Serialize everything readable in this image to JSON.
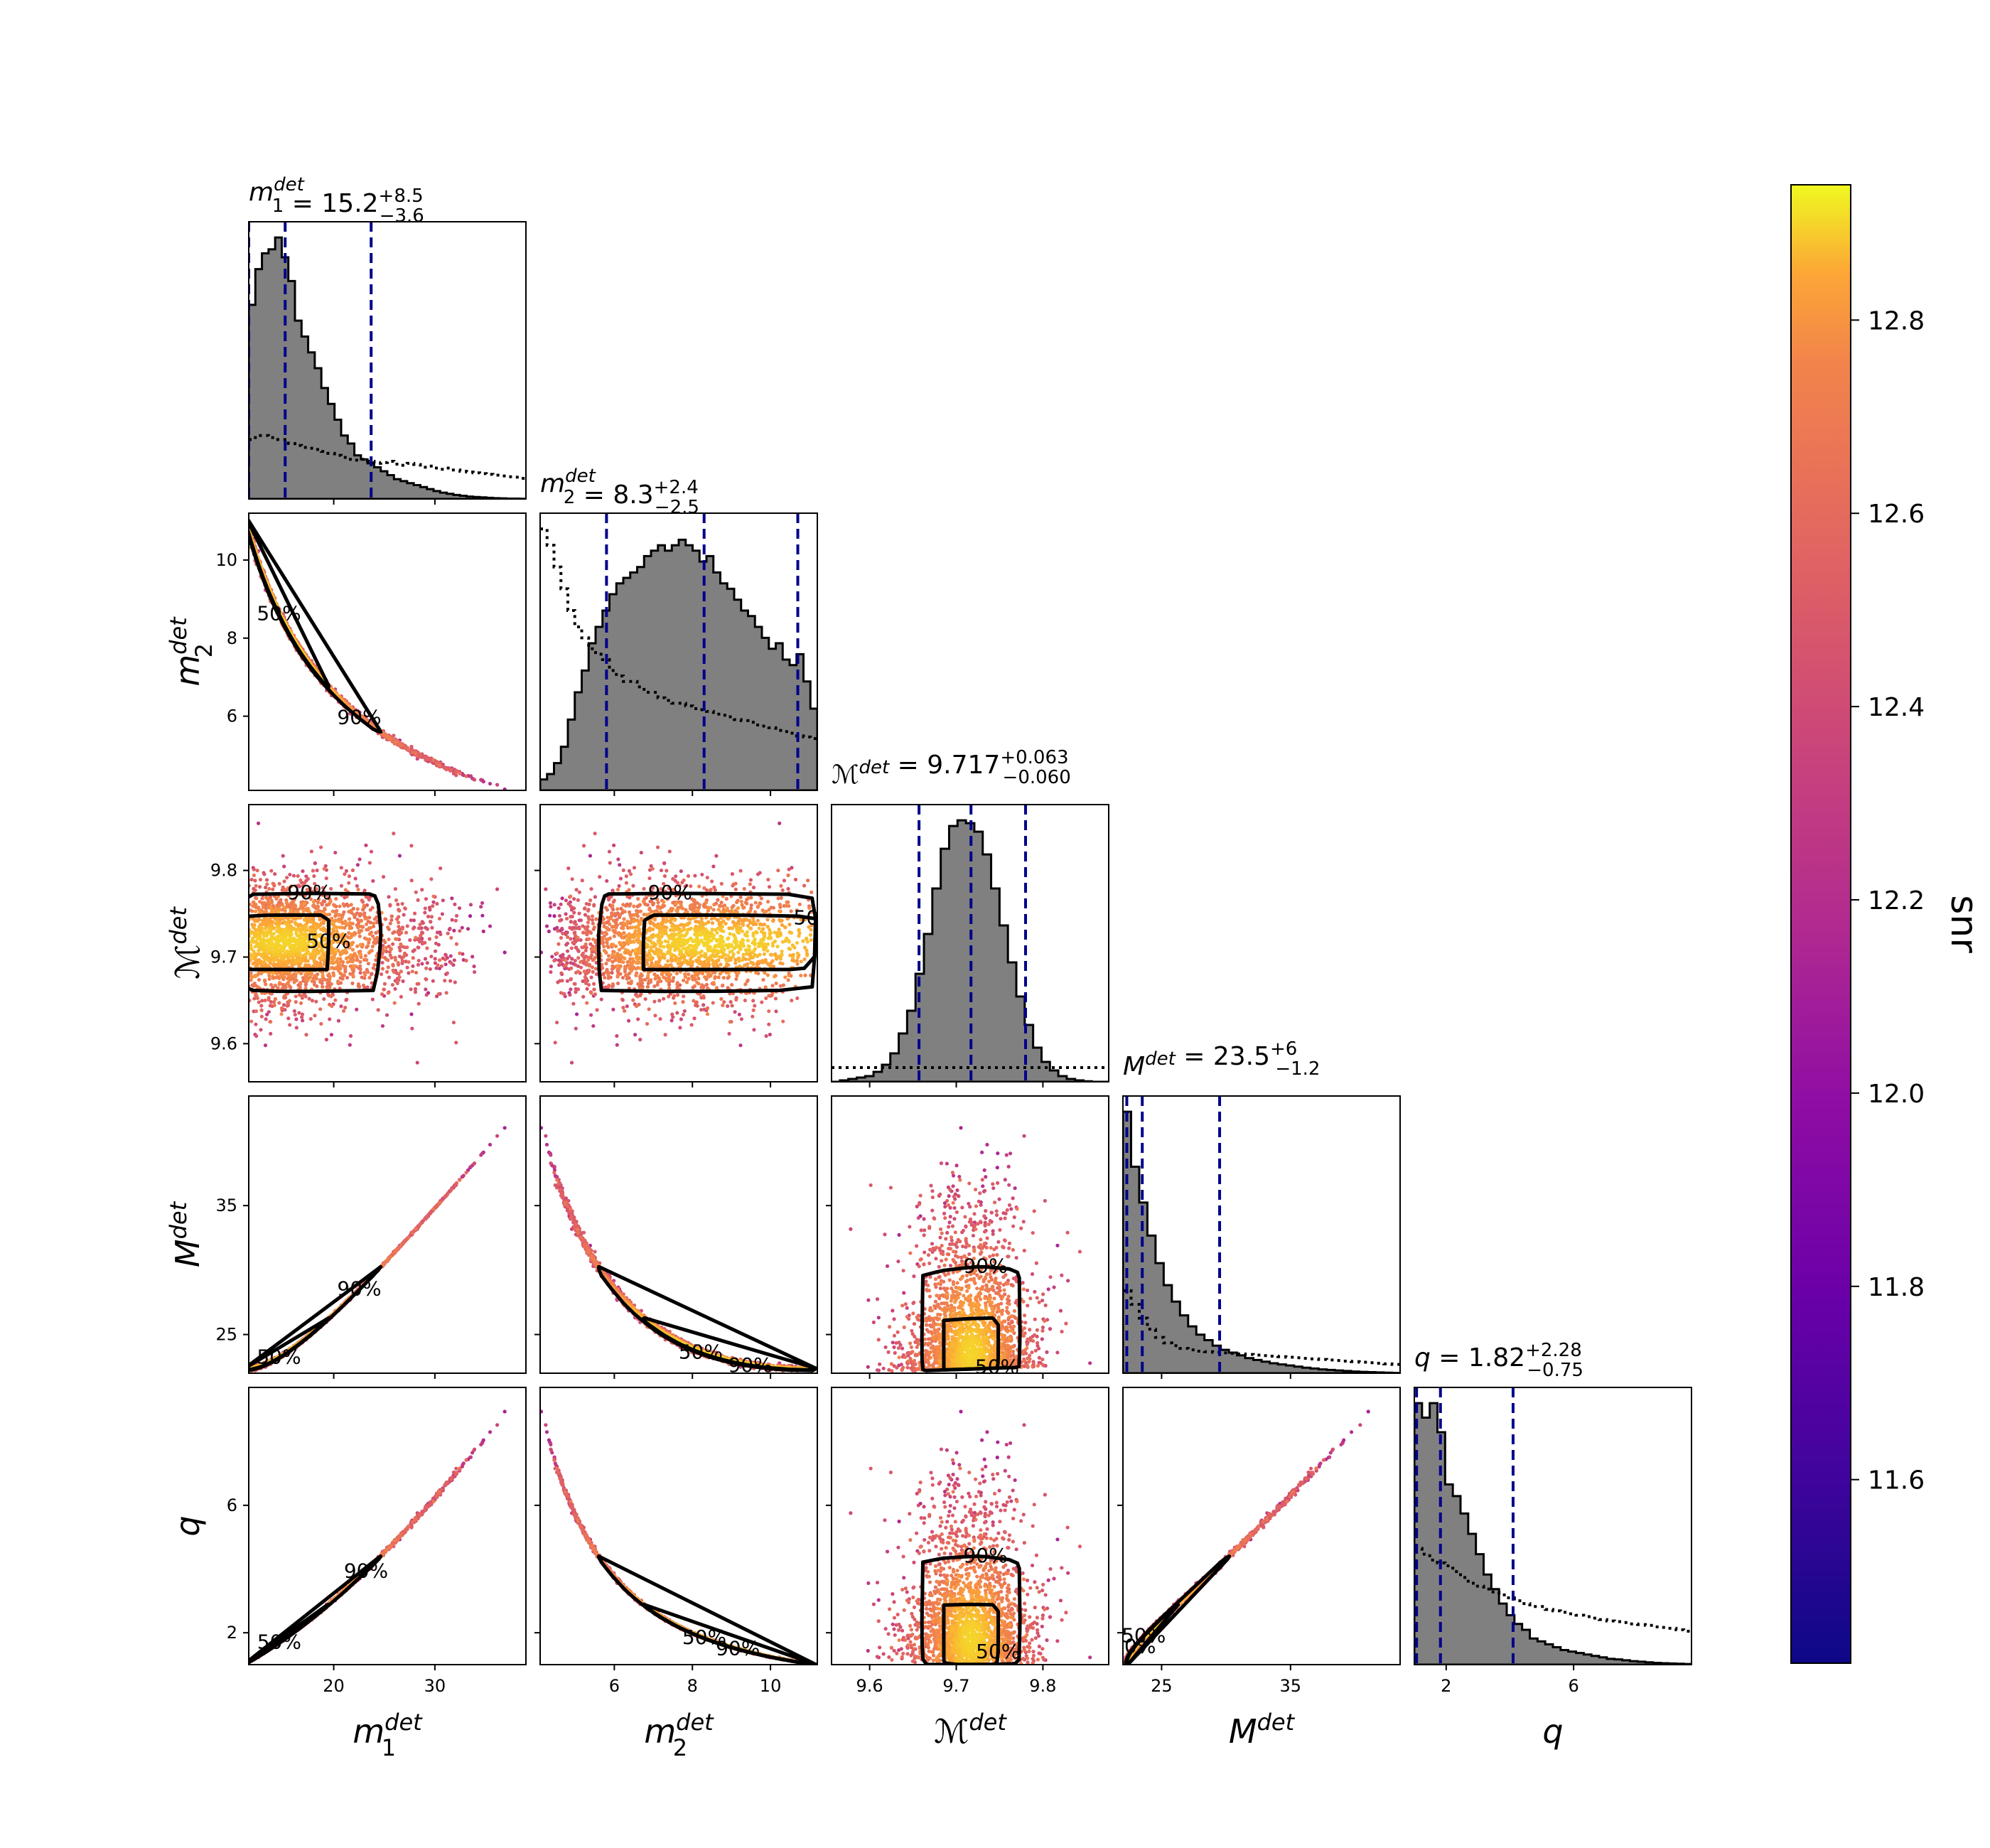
{
  "chart_data": {
    "type": "scatter",
    "title": "",
    "parameters": [
      {
        "key": "m1",
        "label_sym": "m",
        "label_sub": "1",
        "label_sup": "det",
        "range": [
          11.6,
          39.0
        ],
        "ticks": [
          20,
          30
        ],
        "title_value": "15.2",
        "title_plus": "+8.5",
        "title_minus": "−3.6",
        "quantiles": [
          11.6,
          15.2,
          23.7
        ]
      },
      {
        "key": "m2",
        "label_sym": "m",
        "label_sub": "2",
        "label_sup": "det",
        "range": [
          4.1,
          11.2
        ],
        "ticks": [
          6,
          8,
          10
        ],
        "title_value": "8.3",
        "title_plus": "+2.4",
        "title_minus": "−2.5",
        "quantiles": [
          5.8,
          8.3,
          10.7
        ]
      },
      {
        "key": "mc",
        "label_sym": "ℳ",
        "label_sub": "",
        "label_sup": "det",
        "range": [
          9.556,
          9.876
        ],
        "ticks": [
          9.6,
          9.7,
          9.8
        ],
        "title_value": "9.717",
        "title_plus": "+0.063",
        "title_minus": "−0.060",
        "quantiles": [
          9.657,
          9.717,
          9.78
        ]
      },
      {
        "key": "M",
        "label_sym": "M",
        "label_sub": "",
        "label_sup": "det",
        "range": [
          22.0,
          43.5
        ],
        "ticks": [
          25,
          35
        ],
        "title_value": "23.5",
        "title_plus": "+6",
        "title_minus": "−1.2",
        "quantiles": [
          22.3,
          23.5,
          29.5
        ]
      },
      {
        "key": "q",
        "label_sym": "q",
        "label_sub": "",
        "label_sup": "",
        "range": [
          1.0,
          9.7
        ],
        "ticks": [
          2,
          6
        ],
        "title_value": "1.82",
        "title_plus": "+2.28",
        "title_minus": "−0.75",
        "quantiles": [
          1.07,
          1.82,
          4.1
        ]
      }
    ],
    "diagonal_histograms": {
      "m1": {
        "posterior": [
          0.49,
          0.58,
          0.62,
          0.63,
          0.66,
          0.61,
          0.55,
          0.45,
          0.41,
          0.37,
          0.33,
          0.28,
          0.24,
          0.2,
          0.16,
          0.14,
          0.11,
          0.1,
          0.09,
          0.08,
          0.07,
          0.06,
          0.05,
          0.045,
          0.04,
          0.035,
          0.03,
          0.025,
          0.02,
          0.016,
          0.013,
          0.01,
          0.008,
          0.006,
          0.005,
          0.004,
          0.003,
          0.002,
          0.0015,
          0.001,
          0.0008,
          0.0005
        ],
        "prior": [
          0.15,
          0.16,
          0.16,
          0.155,
          0.15,
          0.15,
          0.14,
          0.135,
          0.13,
          0.128,
          0.125,
          0.12,
          0.115,
          0.11,
          0.105,
          0.1,
          0.098,
          0.1,
          0.095,
          0.09,
          0.092,
          0.095,
          0.088,
          0.085,
          0.09,
          0.087,
          0.08,
          0.083,
          0.078,
          0.075,
          0.078,
          0.073,
          0.07,
          0.068,
          0.066,
          0.064,
          0.062,
          0.06,
          0.058,
          0.056,
          0.055,
          0.052
        ]
      },
      "m2": {
        "posterior": [
          0.02,
          0.03,
          0.05,
          0.08,
          0.13,
          0.18,
          0.22,
          0.27,
          0.3,
          0.33,
          0.36,
          0.38,
          0.39,
          0.4,
          0.41,
          0.43,
          0.44,
          0.45,
          0.44,
          0.45,
          0.46,
          0.45,
          0.44,
          0.42,
          0.43,
          0.4,
          0.38,
          0.37,
          0.35,
          0.33,
          0.32,
          0.3,
          0.28,
          0.26,
          0.27,
          0.24,
          0.23,
          0.25,
          0.2,
          0.15
        ],
        "prior": [
          0.48,
          0.45,
          0.41,
          0.37,
          0.33,
          0.3,
          0.28,
          0.26,
          0.25,
          0.24,
          0.22,
          0.21,
          0.2,
          0.2,
          0.19,
          0.18,
          0.18,
          0.17,
          0.165,
          0.16,
          0.16,
          0.155,
          0.15,
          0.148,
          0.145,
          0.14,
          0.138,
          0.135,
          0.13,
          0.128,
          0.125,
          0.12,
          0.118,
          0.115,
          0.11,
          0.108,
          0.105,
          0.1,
          0.098,
          0.095
        ]
      },
      "mc": {
        "posterior": [
          0,
          0.005,
          0.01,
          0.015,
          0.02,
          0.035,
          0.06,
          0.1,
          0.17,
          0.25,
          0.38,
          0.52,
          0.68,
          0.82,
          0.9,
          0.92,
          0.91,
          0.88,
          0.8,
          0.68,
          0.55,
          0.42,
          0.3,
          0.2,
          0.12,
          0.07,
          0.04,
          0.02,
          0.01,
          0.005,
          0.002,
          0,
          0
        ],
        "prior": [
          0.05,
          0.05,
          0.05,
          0.05,
          0.05,
          0.05,
          0.05,
          0.05,
          0.05,
          0.05,
          0.05,
          0.05,
          0.05,
          0.05,
          0.05,
          0.05,
          0.05,
          0.05,
          0.05,
          0.05,
          0.05,
          0.05,
          0.05,
          0.05,
          0.05,
          0.05,
          0.05,
          0.05,
          0.05,
          0.05,
          0.05,
          0.05,
          0.05
        ]
      },
      "M": {
        "posterior": [
          0.95,
          0.75,
          0.62,
          0.5,
          0.4,
          0.32,
          0.26,
          0.21,
          0.17,
          0.14,
          0.12,
          0.1,
          0.085,
          0.075,
          0.065,
          0.055,
          0.048,
          0.042,
          0.036,
          0.032,
          0.028,
          0.024,
          0.02,
          0.017,
          0.014,
          0.012,
          0.01,
          0.008,
          0.006,
          0.005,
          0.004,
          0.003,
          0.002,
          0.001
        ],
        "prior": [
          0.3,
          0.25,
          0.2,
          0.16,
          0.13,
          0.11,
          0.1,
          0.09,
          0.085,
          0.08,
          0.078,
          0.076,
          0.074,
          0.072,
          0.07,
          0.068,
          0.066,
          0.064,
          0.062,
          0.06,
          0.058,
          0.056,
          0.054,
          0.052,
          0.05,
          0.048,
          0.046,
          0.044,
          0.042,
          0.04,
          0.038,
          0.036,
          0.034,
          0.032
        ]
      },
      "q": {
        "posterior": [
          0.9,
          0.85,
          0.9,
          0.8,
          0.62,
          0.58,
          0.52,
          0.45,
          0.38,
          0.31,
          0.26,
          0.21,
          0.17,
          0.14,
          0.12,
          0.09,
          0.08,
          0.07,
          0.06,
          0.05,
          0.045,
          0.04,
          0.035,
          0.03,
          0.025,
          0.02,
          0.018,
          0.015,
          0.012,
          0.01,
          0.008,
          0.006,
          0.005,
          0.004,
          0.003,
          0.002
        ],
        "prior": [
          0.4,
          0.38,
          0.36,
          0.35,
          0.34,
          0.32,
          0.3,
          0.28,
          0.27,
          0.26,
          0.25,
          0.24,
          0.23,
          0.22,
          0.21,
          0.2,
          0.2,
          0.19,
          0.185,
          0.18,
          0.175,
          0.17,
          0.165,
          0.16,
          0.155,
          0.15,
          0.148,
          0.145,
          0.14,
          0.138,
          0.135,
          0.13,
          0.128,
          0.125,
          0.12,
          0.115
        ]
      }
    },
    "contour_labels": [
      "50%",
      "90%"
    ],
    "colorbar": {
      "label": "snr",
      "range": [
        11.41,
        12.94
      ],
      "ticks": [
        "11.6",
        "11.8",
        "12.0",
        "12.2",
        "12.4",
        "12.6",
        "12.8"
      ],
      "tick_values": [
        11.6,
        11.8,
        12.0,
        12.2,
        12.4,
        12.6,
        12.8
      ],
      "colormap": "plasma"
    },
    "colors": {
      "quantile_line": "#00008b",
      "hist_fill": "#808080",
      "hist_edge": "#000000",
      "contour": "#000000"
    }
  }
}
